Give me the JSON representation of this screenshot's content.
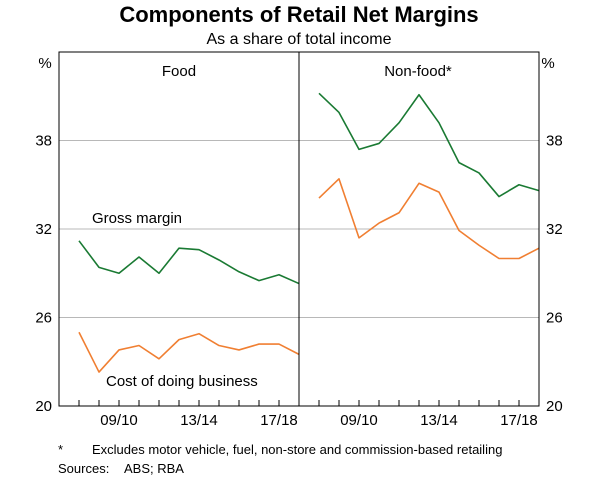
{
  "title": "Components of Retail Net Margins",
  "subtitle": "As a share of total income",
  "unit_label": "%",
  "footnote": {
    "marker": "*",
    "text": "Excludes motor vehicle, fuel, non-store and commission-based retailing"
  },
  "sources": {
    "label": "Sources:",
    "text": "ABS; RBA"
  },
  "colors": {
    "gross_margin": "#1a7a33",
    "cost_of_doing_business": "#f07f32",
    "grid": "#b8b8b8",
    "frame": "#000000"
  },
  "chart_data": {
    "type": "line",
    "ylim": [
      20,
      44
    ],
    "yticks": [
      20,
      26,
      32,
      38
    ],
    "x_range": [
      0,
      12
    ],
    "xticks": [
      {
        "x": 3,
        "label": "09/10"
      },
      {
        "x": 7,
        "label": "13/14"
      },
      {
        "x": 11,
        "label": "17/18"
      }
    ],
    "grid": true,
    "panels": [
      {
        "title": "Food",
        "series": [
          {
            "name": "Gross margin",
            "color_key": "gross_margin",
            "x": [
              1,
              2,
              3,
              4,
              5,
              6,
              7,
              8,
              9,
              10,
              11,
              12
            ],
            "values": [
              31.2,
              29.4,
              29.0,
              30.1,
              29.0,
              30.7,
              30.6,
              29.9,
              29.1,
              28.5,
              28.9,
              28.3
            ]
          },
          {
            "name": "Cost of doing business",
            "color_key": "cost_of_doing_business",
            "x": [
              1,
              2,
              3,
              4,
              5,
              6,
              7,
              8,
              9,
              10,
              11,
              12
            ],
            "values": [
              25.0,
              22.3,
              23.8,
              24.1,
              23.2,
              24.5,
              24.9,
              24.1,
              23.8,
              24.2,
              24.2,
              23.5
            ]
          }
        ]
      },
      {
        "title": "Non-food*",
        "series": [
          {
            "name": "Gross margin",
            "color_key": "gross_margin",
            "x": [
              1,
              2,
              3,
              4,
              5,
              6,
              7,
              8,
              9,
              10,
              11,
              12
            ],
            "values": [
              41.2,
              39.9,
              37.4,
              37.8,
              39.2,
              41.1,
              39.2,
              36.5,
              35.8,
              34.2,
              35.0,
              34.6
            ]
          },
          {
            "name": "Cost of doing business",
            "color_key": "cost_of_doing_business",
            "x": [
              1,
              2,
              3,
              4,
              5,
              6,
              7,
              8,
              9,
              10,
              11,
              12
            ],
            "values": [
              34.1,
              35.4,
              31.4,
              32.4,
              33.1,
              35.1,
              34.5,
              31.9,
              30.9,
              30.0,
              30.0,
              30.7
            ]
          }
        ]
      }
    ]
  }
}
